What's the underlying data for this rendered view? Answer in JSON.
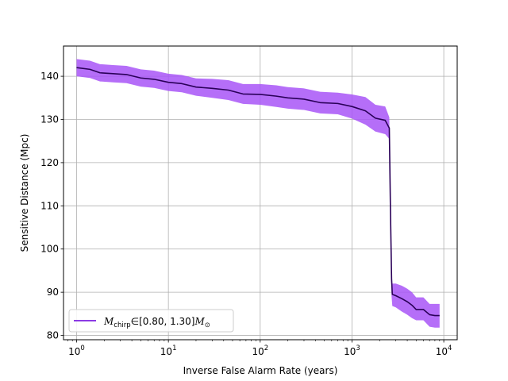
{
  "chart_data": {
    "type": "line",
    "xlabel": "Inverse False Alarm Rate (years)",
    "ylabel": "Sensitive Distance (Mpc)",
    "xscale": "log",
    "xlim": [
      0.72,
      14000
    ],
    "ylim": [
      79,
      147
    ],
    "grid": true,
    "legend_position": "lower-left",
    "x_ticks": [
      {
        "value": 1,
        "base": "10",
        "exp": "0"
      },
      {
        "value": 10,
        "base": "10",
        "exp": "1"
      },
      {
        "value": 100,
        "base": "10",
        "exp": "2"
      },
      {
        "value": 1000,
        "base": "10",
        "exp": "3"
      },
      {
        "value": 10000,
        "base": "10",
        "exp": "4"
      }
    ],
    "y_ticks": [
      80,
      90,
      100,
      110,
      120,
      130,
      140
    ],
    "colors": {
      "line": "#2a0058",
      "band": "#a855f7",
      "legend_line": "#7b1fe0"
    },
    "series": [
      {
        "name": "M_chirp ∈ [0.80, 1.30] M_⊙",
        "legend_label": {
          "m": "M",
          "sub": "chirp",
          "range": "∈[0.80, 1.30]",
          "m2": "M",
          "sub2": "⊙"
        },
        "x": [
          1,
          1.4,
          1.8,
          2.5,
          3.5,
          5,
          7,
          10,
          14,
          20,
          30,
          45,
          65,
          100,
          150,
          200,
          300,
          450,
          700,
          1000,
          1400,
          1800,
          2300,
          2550,
          2620,
          2700,
          2750,
          3000,
          3500,
          4000,
          4500,
          5000,
          6000,
          7000,
          8000,
          9000
        ],
        "y": [
          142,
          141.6,
          140.8,
          140.6,
          140.4,
          139.6,
          139.3,
          138.6,
          138.3,
          137.5,
          137.2,
          136.8,
          135.9,
          135.8,
          135.4,
          135.0,
          134.7,
          133.9,
          133.7,
          133.0,
          132.0,
          130.3,
          129.8,
          128.0,
          110,
          93,
          89.5,
          89.2,
          88.5,
          87.8,
          87.0,
          86.0,
          86.0,
          84.8,
          84.6,
          84.6
        ],
        "lower": [
          140.0,
          139.6,
          138.8,
          138.6,
          138.4,
          137.6,
          137.3,
          136.6,
          136.3,
          135.5,
          135.0,
          134.5,
          133.6,
          133.4,
          132.9,
          132.5,
          132.2,
          131.4,
          131.2,
          130.2,
          128.8,
          127.2,
          126.6,
          125.5,
          107,
          89,
          86.8,
          86.5,
          85.5,
          84.8,
          84.0,
          83.5,
          83.5,
          82.0,
          81.8,
          81.8
        ],
        "upper": [
          144.0,
          143.6,
          142.8,
          142.6,
          142.4,
          141.6,
          141.3,
          140.6,
          140.3,
          139.5,
          139.4,
          139.1,
          138.2,
          138.2,
          137.9,
          137.5,
          137.2,
          136.4,
          136.2,
          135.8,
          135.2,
          133.4,
          133.0,
          130.5,
          113,
          96,
          92.0,
          92.0,
          91.5,
          90.8,
          90.0,
          88.8,
          88.8,
          87.3,
          87.3,
          87.3
        ]
      }
    ]
  }
}
